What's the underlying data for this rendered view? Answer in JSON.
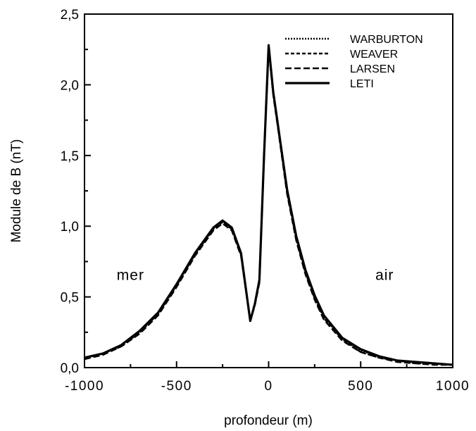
{
  "chart_data": {
    "type": "line",
    "title": "",
    "xlabel": "profondeur  (m)",
    "ylabel": "Module de B (nT)",
    "xlim": [
      -1000,
      1000
    ],
    "ylim": [
      0,
      2.5
    ],
    "x_ticks": [
      -1000,
      -500,
      0,
      500,
      1000
    ],
    "x_tick_labels": [
      "-1000",
      "-500",
      "0",
      "500",
      "1000"
    ],
    "y_ticks": [
      0,
      0.5,
      1.0,
      1.5,
      2.0,
      2.5
    ],
    "y_tick_labels": [
      "0,0",
      "0,5",
      "1,0",
      "1,5",
      "2,0",
      "2,5"
    ],
    "legend_position": "top-right",
    "grid": false,
    "annotations": [
      {
        "text": "mer",
        "x": -750,
        "y": 0.62
      },
      {
        "text": "air",
        "x": 630,
        "y": 0.62
      }
    ],
    "x": [
      -1000,
      -900,
      -800,
      -700,
      -600,
      -500,
      -400,
      -300,
      -250,
      -200,
      -150,
      -100,
      -75,
      -50,
      -25,
      0,
      25,
      50,
      100,
      150,
      200,
      250,
      300,
      400,
      500,
      600,
      700,
      800,
      900,
      1000
    ],
    "series": [
      {
        "name": "WARBURTON",
        "dash": "dotted",
        "values": [
          0.07,
          0.1,
          0.16,
          0.25,
          0.38,
          0.58,
          0.8,
          0.98,
          1.03,
          0.98,
          0.8,
          0.33,
          0.45,
          0.62,
          1.5,
          2.28,
          1.95,
          1.72,
          1.25,
          0.92,
          0.68,
          0.5,
          0.36,
          0.2,
          0.12,
          0.08,
          0.05,
          0.04,
          0.03,
          0.02
        ]
      },
      {
        "name": "WEAVER",
        "dash": "short-dash",
        "values": [
          0.07,
          0.1,
          0.15,
          0.25,
          0.38,
          0.58,
          0.8,
          0.98,
          1.03,
          0.98,
          0.8,
          0.33,
          0.45,
          0.61,
          1.5,
          2.27,
          1.94,
          1.71,
          1.24,
          0.91,
          0.67,
          0.49,
          0.35,
          0.2,
          0.11,
          0.07,
          0.05,
          0.03,
          0.03,
          0.02
        ]
      },
      {
        "name": "LARSEN",
        "dash": "long-dash",
        "values": [
          0.06,
          0.09,
          0.15,
          0.24,
          0.37,
          0.57,
          0.79,
          0.97,
          1.02,
          0.97,
          0.79,
          0.33,
          0.44,
          0.6,
          1.49,
          2.26,
          1.93,
          1.7,
          1.23,
          0.9,
          0.66,
          0.48,
          0.34,
          0.19,
          0.11,
          0.07,
          0.04,
          0.03,
          0.02,
          0.02
        ]
      },
      {
        "name": "LETI",
        "dash": "solid",
        "values": [
          0.07,
          0.1,
          0.16,
          0.26,
          0.39,
          0.59,
          0.81,
          0.99,
          1.04,
          0.99,
          0.81,
          0.33,
          0.45,
          0.62,
          1.5,
          2.28,
          1.95,
          1.72,
          1.26,
          0.93,
          0.69,
          0.51,
          0.37,
          0.21,
          0.13,
          0.08,
          0.05,
          0.04,
          0.03,
          0.02
        ]
      }
    ]
  }
}
